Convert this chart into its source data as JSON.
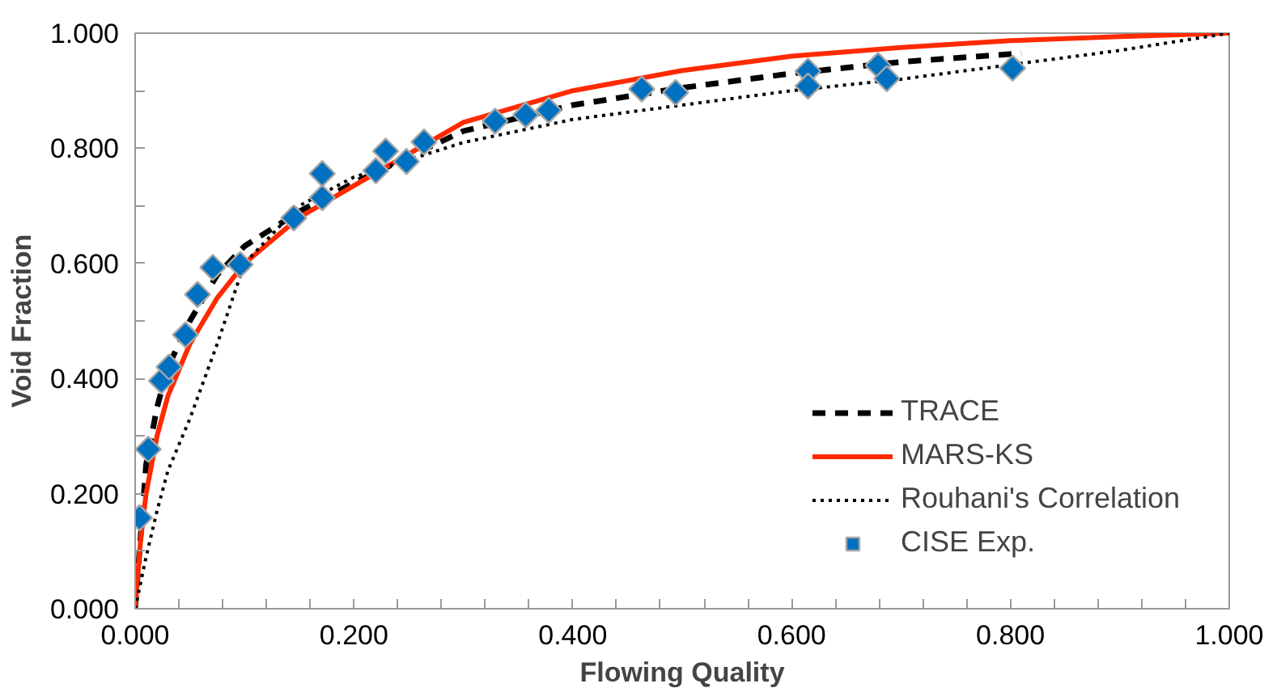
{
  "chart_data": {
    "type": "line",
    "xlabel": "Flowing Quality",
    "ylabel": "Void Fraction",
    "xlim": [
      0,
      1
    ],
    "ylim": [
      0,
      1
    ],
    "xticks": [
      {
        "value": 0,
        "label": "0.000"
      },
      {
        "value": 0.04,
        "label": null
      },
      {
        "value": 0.08,
        "label": null
      },
      {
        "value": 0.12,
        "label": null
      },
      {
        "value": 0.16,
        "label": null
      },
      {
        "value": 0.2,
        "label": "0.200"
      },
      {
        "value": 0.24,
        "label": null
      },
      {
        "value": 0.28,
        "label": null
      },
      {
        "value": 0.32,
        "label": null
      },
      {
        "value": 0.36,
        "label": null
      },
      {
        "value": 0.4,
        "label": "0.400"
      },
      {
        "value": 0.44,
        "label": null
      },
      {
        "value": 0.48,
        "label": null
      },
      {
        "value": 0.52,
        "label": null
      },
      {
        "value": 0.56,
        "label": null
      },
      {
        "value": 0.6,
        "label": "0.600"
      },
      {
        "value": 0.64,
        "label": null
      },
      {
        "value": 0.68,
        "label": null
      },
      {
        "value": 0.72,
        "label": null
      },
      {
        "value": 0.76,
        "label": null
      },
      {
        "value": 0.8,
        "label": "0.800"
      },
      {
        "value": 0.84,
        "label": null
      },
      {
        "value": 0.88,
        "label": null
      },
      {
        "value": 0.92,
        "label": null
      },
      {
        "value": 0.96,
        "label": null
      },
      {
        "value": 1,
        "label": "1.000"
      }
    ],
    "yticks": [
      {
        "value": 0,
        "label": "0.000"
      },
      {
        "value": 0.1,
        "label": null
      },
      {
        "value": 0.2,
        "label": "0.200"
      },
      {
        "value": 0.3,
        "label": null
      },
      {
        "value": 0.4,
        "label": "0.400"
      },
      {
        "value": 0.5,
        "label": null
      },
      {
        "value": 0.6,
        "label": "0.600"
      },
      {
        "value": 0.7,
        "label": null
      },
      {
        "value": 0.8,
        "label": "0.800"
      },
      {
        "value": 0.9,
        "label": null
      },
      {
        "value": 1,
        "label": "1.000"
      }
    ],
    "grid": false,
    "legend": "bottom right",
    "series": [
      {
        "name": "TRACE",
        "line_style": "dashed",
        "color": "#000000",
        "x": [
          0,
          0.01,
          0.02,
          0.03,
          0.05,
          0.075,
          0.1,
          0.15,
          0.2,
          0.3,
          0.4,
          0.5,
          0.6,
          0.7,
          0.81
        ],
        "values": [
          0,
          0.25,
          0.35,
          0.42,
          0.5,
          0.58,
          0.63,
          0.69,
          0.74,
          0.83,
          0.875,
          0.905,
          0.93,
          0.95,
          0.965
        ]
      },
      {
        "name": "MARS-KS",
        "line_style": "solid",
        "color": "#ff2a00",
        "x": [
          0,
          0.005,
          0.01,
          0.02,
          0.03,
          0.05,
          0.075,
          0.1,
          0.15,
          0.2,
          0.3,
          0.4,
          0.5,
          0.6,
          0.7,
          0.8,
          0.9,
          1.0
        ],
        "values": [
          0,
          0.12,
          0.2,
          0.3,
          0.37,
          0.46,
          0.54,
          0.6,
          0.68,
          0.735,
          0.845,
          0.9,
          0.935,
          0.96,
          0.975,
          0.987,
          0.994,
          1.0
        ]
      },
      {
        "name": "Rouhani's Correlation",
        "line_style": "dotted",
        "color": "#000000",
        "x": [
          0,
          0.01,
          0.02,
          0.03,
          0.05,
          0.075,
          0.1,
          0.15,
          0.2,
          0.3,
          0.4,
          0.5,
          0.6,
          0.7,
          0.8,
          0.9,
          1.0
        ],
        "values": [
          0,
          0.09,
          0.17,
          0.24,
          0.33,
          0.46,
          0.6,
          0.7,
          0.75,
          0.81,
          0.85,
          0.875,
          0.9,
          0.92,
          0.945,
          0.97,
          1.0
        ]
      },
      {
        "name": "CISE Exp.",
        "type": "scatter",
        "marker": "diamond",
        "color": "#0070c0",
        "x": [
          0.004,
          0.012,
          0.024,
          0.031,
          0.046,
          0.057,
          0.071,
          0.096,
          0.145,
          0.171,
          0.171,
          0.22,
          0.229,
          0.248,
          0.264,
          0.329,
          0.357,
          0.378,
          0.463,
          0.494,
          0.615,
          0.615,
          0.679,
          0.687,
          0.802
        ],
        "values": [
          0.158,
          0.277,
          0.396,
          0.42,
          0.476,
          0.546,
          0.593,
          0.598,
          0.679,
          0.714,
          0.756,
          0.761,
          0.795,
          0.777,
          0.811,
          0.847,
          0.858,
          0.866,
          0.903,
          0.897,
          0.934,
          0.908,
          0.944,
          0.921,
          0.939
        ]
      }
    ]
  }
}
